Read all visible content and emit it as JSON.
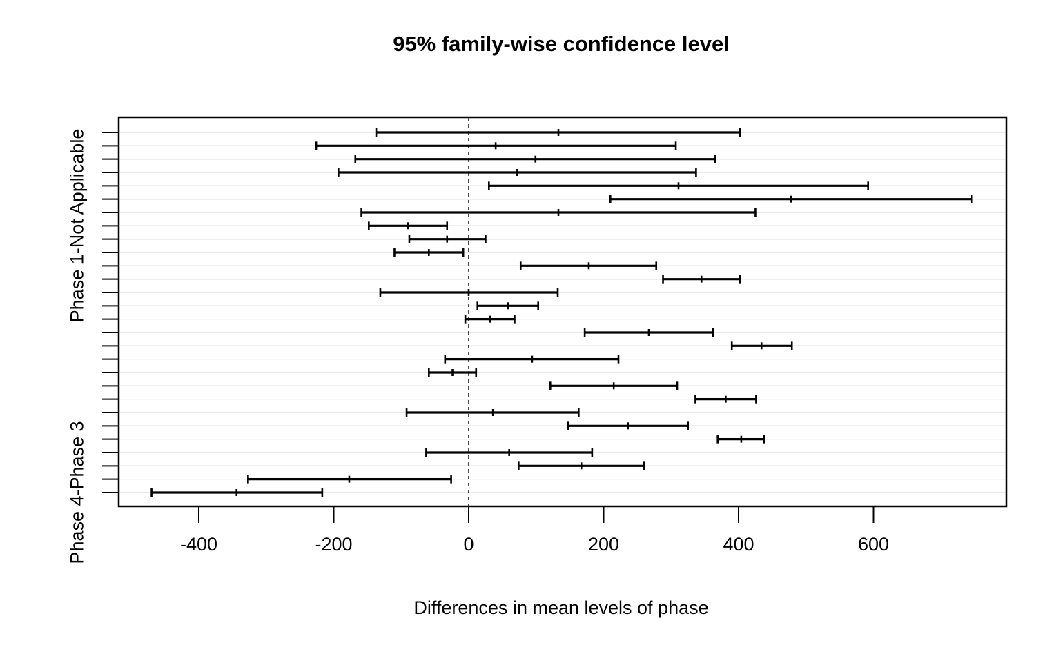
{
  "chart_data": {
    "type": "interval",
    "title": "95% family-wise confidence level",
    "xlabel": "Differences in mean levels of phase",
    "x_ticks": [
      -400,
      -200,
      0,
      200,
      400,
      600
    ],
    "xlim": [
      -518,
      797
    ],
    "zero_reference_line": 0,
    "grid": true,
    "n_comparisons": 28,
    "y_axis_labels": [
      {
        "row": 8,
        "label": "Phase 1-Not Applicable"
      },
      {
        "row": 28,
        "label": "Phase 4-Phase 3"
      }
    ],
    "colors": {
      "interval": "#000000",
      "grid": "#d9d9d9",
      "axis": "#000000",
      "background": "#ffffff"
    },
    "intervals": [
      {
        "lower": -137,
        "center": 133,
        "upper": 402
      },
      {
        "lower": -226,
        "center": 40,
        "upper": 307
      },
      {
        "lower": -168,
        "center": 99,
        "upper": 365
      },
      {
        "lower": -193,
        "center": 72,
        "upper": 337
      },
      {
        "lower": 30,
        "center": 311,
        "upper": 592
      },
      {
        "lower": 210,
        "center": 478,
        "upper": 745
      },
      {
        "lower": -159,
        "center": 133,
        "upper": 425
      },
      {
        "lower": -148,
        "center": -90,
        "upper": -32
      },
      {
        "lower": -88,
        "center": -32,
        "upper": 25
      },
      {
        "lower": -110,
        "center": -59,
        "upper": -8
      },
      {
        "lower": 77,
        "center": 178,
        "upper": 278
      },
      {
        "lower": 288,
        "center": 345,
        "upper": 402
      },
      {
        "lower": -131,
        "center": 0,
        "upper": 132
      },
      {
        "lower": 13,
        "center": 58,
        "upper": 103
      },
      {
        "lower": -5,
        "center": 32,
        "upper": 68
      },
      {
        "lower": 172,
        "center": 267,
        "upper": 362
      },
      {
        "lower": 390,
        "center": 434,
        "upper": 479
      },
      {
        "lower": -35,
        "center": 94,
        "upper": 222
      },
      {
        "lower": -59,
        "center": -24,
        "upper": 11
      },
      {
        "lower": 121,
        "center": 215,
        "upper": 309
      },
      {
        "lower": 336,
        "center": 381,
        "upper": 426
      },
      {
        "lower": -92,
        "center": 36,
        "upper": 163
      },
      {
        "lower": 147,
        "center": 236,
        "upper": 325
      },
      {
        "lower": 369,
        "center": 404,
        "upper": 438
      },
      {
        "lower": -63,
        "center": 60,
        "upper": 183
      },
      {
        "lower": 74,
        "center": 167,
        "upper": 260
      },
      {
        "lower": -327,
        "center": -177,
        "upper": -26
      },
      {
        "lower": -470,
        "center": -344,
        "upper": -217
      }
    ]
  }
}
